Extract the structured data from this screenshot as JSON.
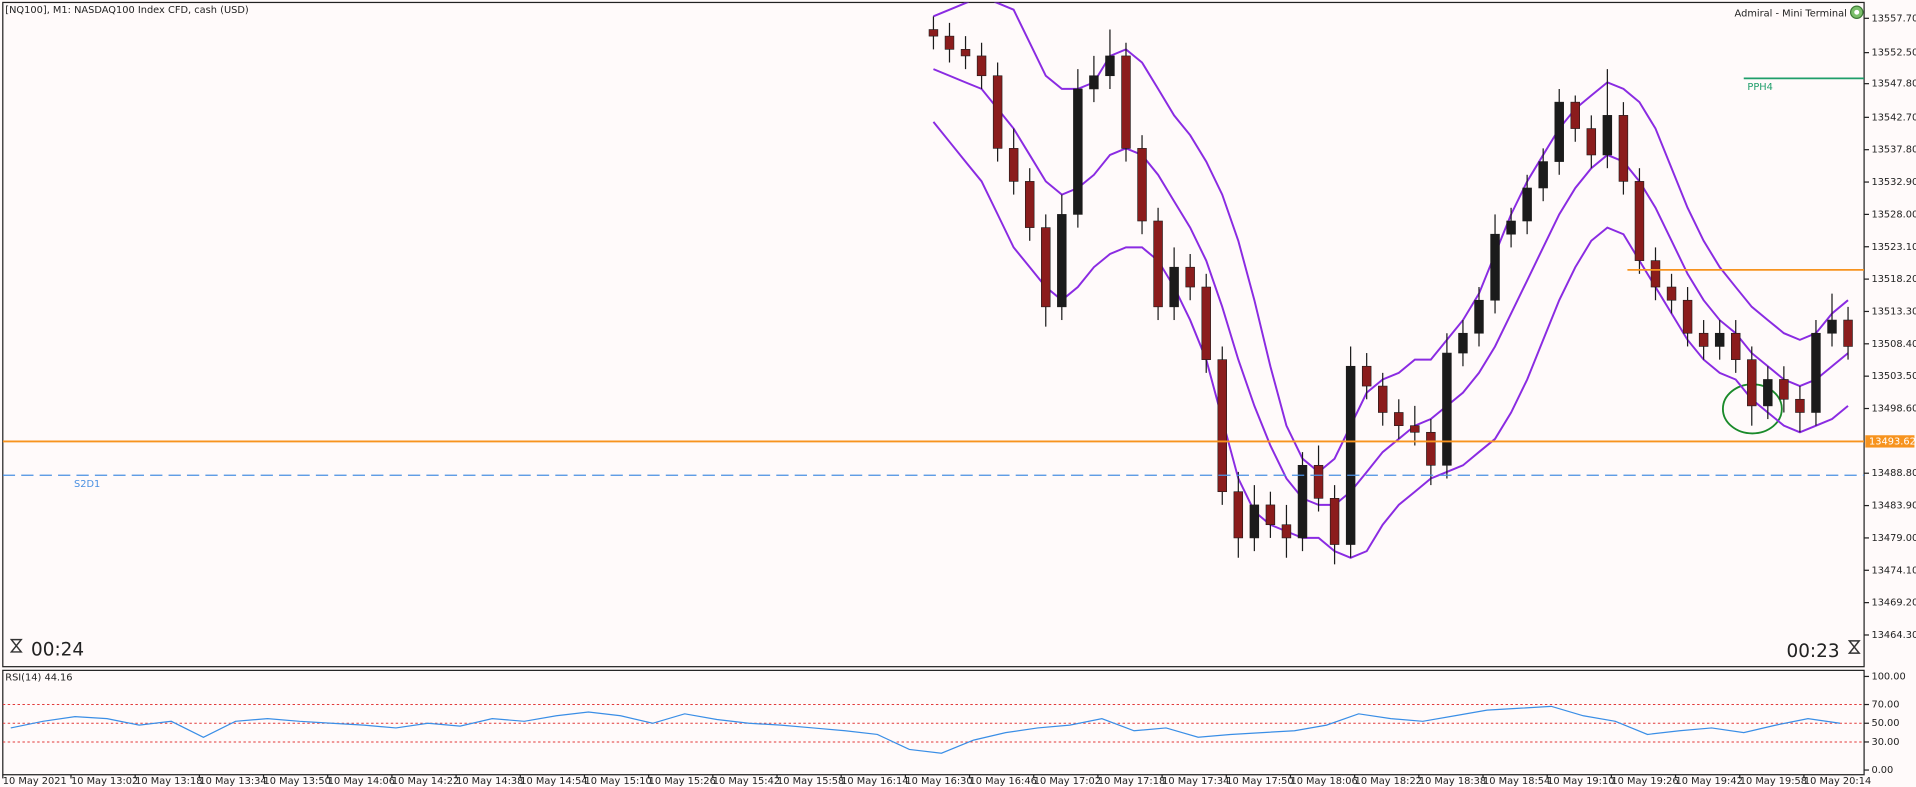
{
  "terminal": {
    "brand": "Admiral - Mini Terminal",
    "timer_left": "00:24",
    "timer_right": "00:23"
  },
  "chart_data": [
    {
      "type": "candlestick",
      "title": "[NQ100], M1:  NASDAQ100 Index CFD, cash (USD)",
      "x": [
        "2021-05-10 16:37",
        "2021-05-10 16:41",
        "2021-05-10 16:45",
        "2021-05-10 16:49",
        "2021-05-10 16:53",
        "2021-05-10 16:57",
        "2021-05-10 17:01",
        "2021-05-10 17:05",
        "2021-05-10 17:09",
        "2021-05-10 17:13",
        "2021-05-10 17:17",
        "2021-05-10 17:21",
        "2021-05-10 17:25",
        "2021-05-10 17:29",
        "2021-05-10 17:33",
        "2021-05-10 17:37",
        "2021-05-10 17:41",
        "2021-05-10 17:45",
        "2021-05-10 17:49",
        "2021-05-10 17:53",
        "2021-05-10 17:57",
        "2021-05-10 18:01",
        "2021-05-10 18:05",
        "2021-05-10 18:09",
        "2021-05-10 18:13",
        "2021-05-10 18:17",
        "2021-05-10 18:21",
        "2021-05-10 18:25",
        "2021-05-10 18:29",
        "2021-05-10 18:33",
        "2021-05-10 18:37",
        "2021-05-10 18:41",
        "2021-05-10 18:45",
        "2021-05-10 18:49",
        "2021-05-10 18:53",
        "2021-05-10 18:57",
        "2021-05-10 19:01",
        "2021-05-10 19:05",
        "2021-05-10 19:09",
        "2021-05-10 19:13",
        "2021-05-10 19:17",
        "2021-05-10 19:21",
        "2021-05-10 19:25",
        "2021-05-10 19:29",
        "2021-05-10 19:33",
        "2021-05-10 19:37",
        "2021-05-10 19:41",
        "2021-05-10 19:45",
        "2021-05-10 19:49",
        "2021-05-10 19:53",
        "2021-05-10 19:57",
        "2021-05-10 20:01",
        "2021-05-10 20:05",
        "2021-05-10 20:09",
        "2021-05-10 20:13",
        "2021-05-10 20:17",
        "2021-05-10 20:21",
        "2021-05-10 20:25"
      ],
      "open": [
        13556,
        13555,
        13553,
        13552,
        13549,
        13538,
        13533,
        13526,
        13514,
        13528,
        13547,
        13549,
        13552,
        13538,
        13527,
        13514,
        13520,
        13517,
        13506,
        13486,
        13479,
        13484,
        13481,
        13479,
        13490,
        13485,
        13478,
        13505,
        13502,
        13498,
        13496,
        13495,
        13490,
        13507,
        13510,
        13515,
        13525,
        13527,
        13532,
        13536,
        13545,
        13541,
        13537,
        13543,
        13533,
        13521,
        13517,
        13515,
        13510,
        13508,
        13510,
        13506,
        13499,
        13503,
        13500,
        13498,
        13510,
        13512
      ],
      "high": [
        13558,
        13557,
        13555,
        13554,
        13551,
        13541,
        13535,
        13528,
        13531,
        13550,
        13552,
        13556,
        13554,
        13540,
        13529,
        13523,
        13522,
        13519,
        13508,
        13489,
        13487,
        13486,
        13484,
        13492,
        13493,
        13487,
        13508,
        13507,
        13504,
        13500,
        13499,
        13497,
        13510,
        13512,
        13517,
        13528,
        13529,
        13534,
        13538,
        13547,
        13546,
        13543,
        13550,
        13545,
        13535,
        13523,
        13519,
        13517,
        13512,
        13512,
        13512,
        13508,
        13505,
        13505,
        13502,
        13512,
        13516,
        13514
      ],
      "low": [
        13553,
        13551,
        13550,
        13547,
        13536,
        13531,
        13524,
        13511,
        13512,
        13526,
        13545,
        13547,
        13536,
        13525,
        13512,
        13512,
        13515,
        13504,
        13484,
        13476,
        13477,
        13479,
        13476,
        13477,
        13483,
        13475,
        13476,
        13500,
        13496,
        13494,
        13493,
        13487,
        13488,
        13505,
        13508,
        13513,
        13523,
        13525,
        13530,
        13534,
        13539,
        13535,
        13535,
        13531,
        13519,
        13515,
        13513,
        13508,
        13506,
        13506,
        13504,
        13496,
        13497,
        13498,
        13495,
        13496,
        13508,
        13506
      ],
      "close": [
        13555,
        13553,
        13552,
        13549,
        13538,
        13533,
        13526,
        13514,
        13528,
        13547,
        13549,
        13552,
        13538,
        13527,
        13514,
        13520,
        13517,
        13506,
        13486,
        13479,
        13484,
        13481,
        13479,
        13490,
        13485,
        13478,
        13505,
        13502,
        13498,
        13496,
        13495,
        13490,
        13507,
        13510,
        13515,
        13525,
        13527,
        13532,
        13536,
        13545,
        13541,
        13537,
        13543,
        13533,
        13521,
        13517,
        13515,
        13510,
        13508,
        13510,
        13506,
        13499,
        13503,
        13500,
        13498,
        13510,
        13512,
        13508
      ],
      "up_color": "#1b1b1b",
      "down_color": "#8b1c1c",
      "overlays": [
        {
          "color": "#8a2be2",
          "values": [
            13558,
            13559,
            13560,
            13561,
            13560,
            13559,
            13554,
            13549,
            13547,
            13547,
            13548,
            13552,
            13553,
            13551,
            13547,
            13543,
            13540,
            13536,
            13531,
            13524,
            13515,
            13505,
            13496,
            13491,
            13489,
            13491,
            13496,
            13501,
            13503,
            13504,
            13506,
            13506,
            13509,
            13512,
            13516,
            13522,
            13528,
            13533,
            13537,
            13541,
            13544,
            13546,
            13548,
            13547,
            13545,
            13541,
            13535,
            13529,
            13524,
            13520,
            13517,
            13514,
            13512,
            13510,
            13509,
            13510,
            13513,
            13515
          ]
        },
        {
          "color": "#8a2be2",
          "values": [
            13550,
            13549,
            13548,
            13547,
            13544,
            13541,
            13537,
            13533,
            13531,
            13532,
            13534,
            13537,
            13538,
            13537,
            13534,
            13530,
            13526,
            13521,
            13514,
            13506,
            13499,
            13493,
            13488,
            13485,
            13484,
            13484,
            13486,
            13489,
            13492,
            13494,
            13496,
            13497,
            13499,
            13501,
            13504,
            13508,
            13513,
            13518,
            13523,
            13528,
            13532,
            13535,
            13537,
            13536,
            13533,
            13529,
            13524,
            13519,
            13515,
            13512,
            13510,
            13507,
            13505,
            13503,
            13502,
            13503,
            13505,
            13507
          ]
        },
        {
          "color": "#8a2be2",
          "values": [
            13542,
            13539,
            13536,
            13533,
            13528,
            13523,
            13520,
            13517,
            13515,
            13517,
            13520,
            13522,
            13523,
            13523,
            13521,
            13517,
            13512,
            13506,
            13497,
            13488,
            13483,
            13481,
            13480,
            13479,
            13479,
            13477,
            13476,
            13477,
            13481,
            13484,
            13486,
            13488,
            13489,
            13490,
            13492,
            13494,
            13498,
            13503,
            13509,
            13515,
            13520,
            13524,
            13526,
            13525,
            13521,
            13517,
            13513,
            13509,
            13506,
            13504,
            13503,
            13500,
            13498,
            13496,
            13495,
            13496,
            13497,
            13499
          ]
        }
      ],
      "levels": [
        {
          "value": 13548.6,
          "label": "PPH4",
          "color": "#1f9e6a",
          "start": "2021-05-10 19:59"
        },
        {
          "value": 13519.6,
          "color": "#f7931e",
          "start": "2021-05-10 19:30"
        },
        {
          "value": 13493.62,
          "color": "#f7931e",
          "tag": true
        },
        {
          "value": 13488.5,
          "label": "S2D1",
          "color": "#4a90e2",
          "dashed": true
        }
      ],
      "xlim": [
        "2021-05-10 12:45",
        "2021-05-10 20:29"
      ],
      "ylim": [
        13459.5,
        13560.1
      ],
      "yticks": [
        {
          "value": 13557.7,
          "label": "13557.70"
        },
        {
          "value": 13552.5,
          "label": "13552.50"
        },
        {
          "value": 13547.8,
          "label": "13547.80"
        },
        {
          "value": 13542.7,
          "label": "13542.70"
        },
        {
          "value": 13537.8,
          "label": "13537.80"
        },
        {
          "value": 13532.9,
          "label": "13532.90"
        },
        {
          "value": 13528,
          "label": "13528.00"
        },
        {
          "value": 13523.1,
          "label": "13523.10"
        },
        {
          "value": 13518.2,
          "label": "13518.20"
        },
        {
          "value": 13513.3,
          "label": "13513.30"
        },
        {
          "value": 13508.4,
          "label": "13508.40"
        },
        {
          "value": 13503.5,
          "label": "13503.50"
        },
        {
          "value": 13498.6,
          "label": "13498.60"
        },
        {
          "value": 13488.8,
          "label": "13488.80"
        },
        {
          "value": 13483.9,
          "label": "13483.90"
        },
        {
          "value": 13479,
          "label": "13479.00"
        },
        {
          "value": 13474.1,
          "label": "13474.10"
        },
        {
          "value": 13469.2,
          "label": "13469.20"
        },
        {
          "value": 13464.3,
          "label": "13464.30"
        }
      ]
    },
    {
      "type": "line",
      "title": "RSI(14) 44.16",
      "x": [
        "2021-05-10 12:47",
        "2021-05-10 12:55",
        "2021-05-10 13:03",
        "2021-05-10 13:11",
        "2021-05-10 13:19",
        "2021-05-10 13:27",
        "2021-05-10 13:35",
        "2021-05-10 13:43",
        "2021-05-10 13:51",
        "2021-05-10 13:59",
        "2021-05-10 14:07",
        "2021-05-10 14:15",
        "2021-05-10 14:23",
        "2021-05-10 14:31",
        "2021-05-10 14:39",
        "2021-05-10 14:47",
        "2021-05-10 14:55",
        "2021-05-10 15:03",
        "2021-05-10 15:11",
        "2021-05-10 15:19",
        "2021-05-10 15:27",
        "2021-05-10 15:35",
        "2021-05-10 15:43",
        "2021-05-10 15:51",
        "2021-05-10 15:59",
        "2021-05-10 16:07",
        "2021-05-10 16:15",
        "2021-05-10 16:23",
        "2021-05-10 16:31",
        "2021-05-10 16:39",
        "2021-05-10 16:47",
        "2021-05-10 16:55",
        "2021-05-10 17:03",
        "2021-05-10 17:11",
        "2021-05-10 17:19",
        "2021-05-10 17:27",
        "2021-05-10 17:35",
        "2021-05-10 17:43",
        "2021-05-10 17:51",
        "2021-05-10 17:59",
        "2021-05-10 18:07",
        "2021-05-10 18:15",
        "2021-05-10 18:23",
        "2021-05-10 18:31",
        "2021-05-10 18:39",
        "2021-05-10 18:47",
        "2021-05-10 18:55",
        "2021-05-10 19:03",
        "2021-05-10 19:11",
        "2021-05-10 19:19",
        "2021-05-10 19:27",
        "2021-05-10 19:35",
        "2021-05-10 19:43",
        "2021-05-10 19:51",
        "2021-05-10 19:59",
        "2021-05-10 20:07",
        "2021-05-10 20:15",
        "2021-05-10 20:23"
      ],
      "values": [
        45,
        52,
        57,
        55,
        48,
        52,
        35,
        52,
        55,
        52,
        50,
        48,
        45,
        50,
        47,
        55,
        52,
        58,
        62,
        58,
        50,
        60,
        54,
        50,
        48,
        45,
        42,
        38,
        22,
        18,
        32,
        40,
        45,
        48,
        55,
        42,
        45,
        35,
        38,
        40,
        42,
        48,
        60,
        55,
        52,
        58,
        64,
        66,
        68,
        58,
        52,
        38,
        42,
        45,
        40,
        48,
        55,
        50
      ],
      "color": "#3a8ee6",
      "levels": [
        70,
        50,
        30
      ],
      "level_color": "#e23b3b",
      "xlim": [
        "2021-05-10 12:45",
        "2021-05-10 20:29"
      ],
      "ylim": [
        -5,
        106.5
      ],
      "yticks": [
        {
          "value": 100,
          "label": "100.00"
        },
        {
          "value": 70,
          "label": "70.00"
        },
        {
          "value": 50,
          "label": "50.00"
        },
        {
          "value": 30,
          "label": "30.00"
        },
        {
          "value": 0,
          "label": "0.00"
        }
      ],
      "xticks": [
        {
          "value": "2021-05-10 12:45",
          "label": "10 May 2021"
        },
        {
          "value": "2021-05-10 13:02",
          "label": "10 May 13:02"
        },
        {
          "value": "2021-05-10 13:18",
          "label": "10 May 13:18"
        },
        {
          "value": "2021-05-10 13:34",
          "label": "10 May 13:34"
        },
        {
          "value": "2021-05-10 13:50",
          "label": "10 May 13:50"
        },
        {
          "value": "2021-05-10 14:06",
          "label": "10 May 14:06"
        },
        {
          "value": "2021-05-10 14:22",
          "label": "10 May 14:22"
        },
        {
          "value": "2021-05-10 14:38",
          "label": "10 May 14:38"
        },
        {
          "value": "2021-05-10 14:54",
          "label": "10 May 14:54"
        },
        {
          "value": "2021-05-10 15:10",
          "label": "10 May 15:10"
        },
        {
          "value": "2021-05-10 15:26",
          "label": "10 May 15:26"
        },
        {
          "value": "2021-05-10 15:42",
          "label": "10 May 15:42"
        },
        {
          "value": "2021-05-10 15:58",
          "label": "10 May 15:58"
        },
        {
          "value": "2021-05-10 16:14",
          "label": "10 May 16:14"
        },
        {
          "value": "2021-05-10 16:30",
          "label": "10 May 16:30"
        },
        {
          "value": "2021-05-10 16:46",
          "label": "10 May 16:46"
        },
        {
          "value": "2021-05-10 17:02",
          "label": "10 May 17:02"
        },
        {
          "value": "2021-05-10 17:18",
          "label": "10 May 17:18"
        },
        {
          "value": "2021-05-10 17:34",
          "label": "10 May 17:34"
        },
        {
          "value": "2021-05-10 17:50",
          "label": "10 May 17:50"
        },
        {
          "value": "2021-05-10 18:06",
          "label": "10 May 18:06"
        },
        {
          "value": "2021-05-10 18:22",
          "label": "10 May 18:22"
        },
        {
          "value": "2021-05-10 18:38",
          "label": "10 May 18:38"
        },
        {
          "value": "2021-05-10 18:54",
          "label": "10 May 18:54"
        },
        {
          "value": "2021-05-10 19:10",
          "label": "10 May 19:10"
        },
        {
          "value": "2021-05-10 19:26",
          "label": "10 May 19:26"
        },
        {
          "value": "2021-05-10 19:42",
          "label": "10 May 19:42"
        },
        {
          "value": "2021-05-10 19:58",
          "label": "10 May 19:58"
        },
        {
          "value": "2021-05-10 20:14",
          "label": "10 May 20:14"
        }
      ]
    }
  ]
}
